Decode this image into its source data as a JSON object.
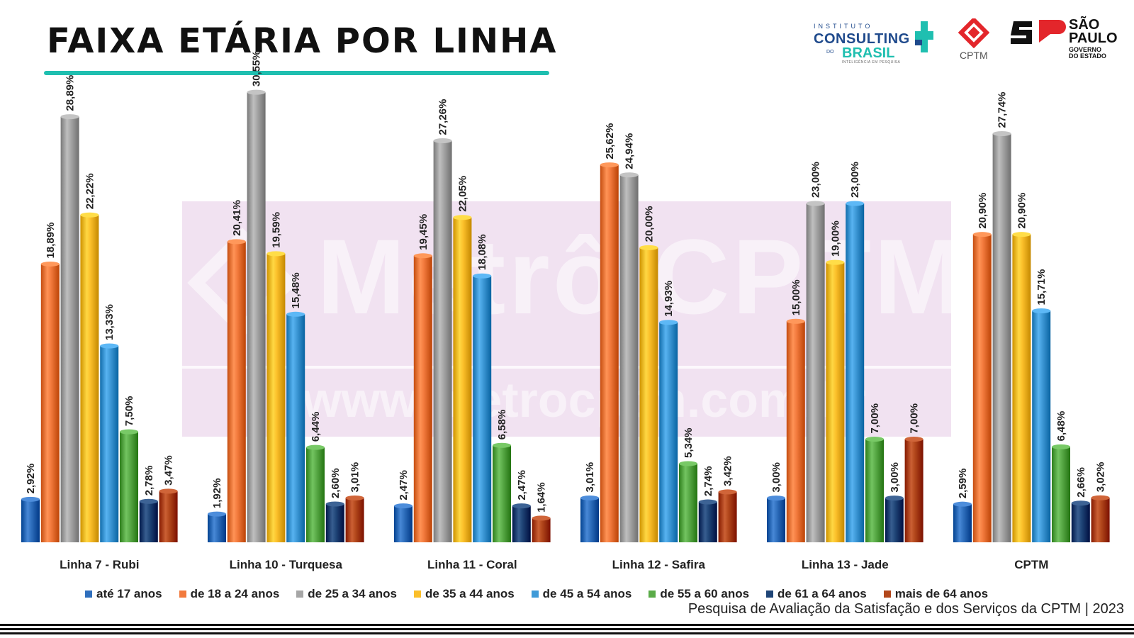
{
  "header": {
    "title": "FAIXA ETÁRIA POR LINHA"
  },
  "logos": {
    "instituto_small": "INSTITUTO",
    "instituto_main": "CONSULTING",
    "instituto_of": "DO",
    "instituto_sub": "BRASIL",
    "instituto_tag": "INTELIGÊNCIA EM PESQUISA",
    "cptm": "CPTM",
    "sp_name_1": "SÃO",
    "sp_name_2": "PAULO",
    "sp_sub_1": "GOVERNO",
    "sp_sub_2": "DO ESTADO"
  },
  "watermark": {
    "main": "Metrô CPTM",
    "url": "www.metrocptm.com.br"
  },
  "footer": {
    "note": "Pesquisa de Avaliação da Satisfação e dos Serviços da CPTM | 2023"
  },
  "chart_data": {
    "type": "bar",
    "categories": [
      "Linha 7 - Rubi",
      "Linha 10 - Turquesa",
      "Linha 11 - Coral",
      "Linha 12 - Safira",
      "Linha 13 - Jade",
      "CPTM"
    ],
    "ylim": [
      0,
      32
    ],
    "grid": false,
    "legend_position": "bottom",
    "value_suffix": "%",
    "series": [
      {
        "name": "até 17 anos",
        "color": "#2f6fbd",
        "values": [
          2.92,
          1.92,
          2.47,
          3.01,
          3.0,
          2.59
        ],
        "labels": [
          "2,92%",
          "1,92%",
          "2,47%",
          "3,01%",
          "3,00%",
          "2,59%"
        ]
      },
      {
        "name": "de 18 a 24 anos",
        "color": "#f27a3d",
        "values": [
          18.89,
          20.41,
          19.45,
          25.62,
          15.0,
          20.9
        ],
        "labels": [
          "18,89%",
          "20,41%",
          "19,45%",
          "25,62%",
          "15,00%",
          "20,90%"
        ]
      },
      {
        "name": "de 25 a 34 anos",
        "color": "#a6a6a6",
        "values": [
          28.89,
          30.55,
          27.26,
          24.94,
          23.0,
          27.74
        ],
        "labels": [
          "28,89%",
          "30,55%",
          "27,26%",
          "24,94%",
          "23,00%",
          "27,74%"
        ]
      },
      {
        "name": "de 35 a 44 anos",
        "color": "#fbbf2a",
        "values": [
          22.22,
          19.59,
          22.05,
          20.0,
          19.0,
          20.9
        ],
        "labels": [
          "22,22%",
          "19,59%",
          "22,05%",
          "20,00%",
          "19,00%",
          "20,90%"
        ]
      },
      {
        "name": "de 45 a 54 anos",
        "color": "#3f9ad8",
        "values": [
          13.33,
          15.48,
          18.08,
          14.93,
          23.0,
          15.71
        ],
        "labels": [
          "13,33%",
          "15,48%",
          "18,08%",
          "14,93%",
          "23,00%",
          "15,71%"
        ]
      },
      {
        "name": "de 55 a 60 anos",
        "color": "#5aab48",
        "values": [
          7.5,
          6.44,
          6.58,
          5.34,
          7.0,
          6.48
        ],
        "labels": [
          "7,50%",
          "6,44%",
          "6,58%",
          "5,34%",
          "7,00%",
          "6,48%"
        ]
      },
      {
        "name": "de 61 a 64 anos",
        "color": "#1f4577",
        "values": [
          2.78,
          2.6,
          2.47,
          2.74,
          3.0,
          2.66
        ],
        "labels": [
          "2,78%",
          "2,60%",
          "2,47%",
          "2,74%",
          "3,00%",
          "2,66%"
        ]
      },
      {
        "name": "mais de 64 anos",
        "color": "#b2471b",
        "values": [
          3.47,
          3.01,
          1.64,
          3.42,
          7.0,
          3.02
        ],
        "labels": [
          "3,47%",
          "3,01%",
          "1,64%",
          "3,42%",
          "7,00%",
          "3,02%"
        ]
      }
    ]
  }
}
